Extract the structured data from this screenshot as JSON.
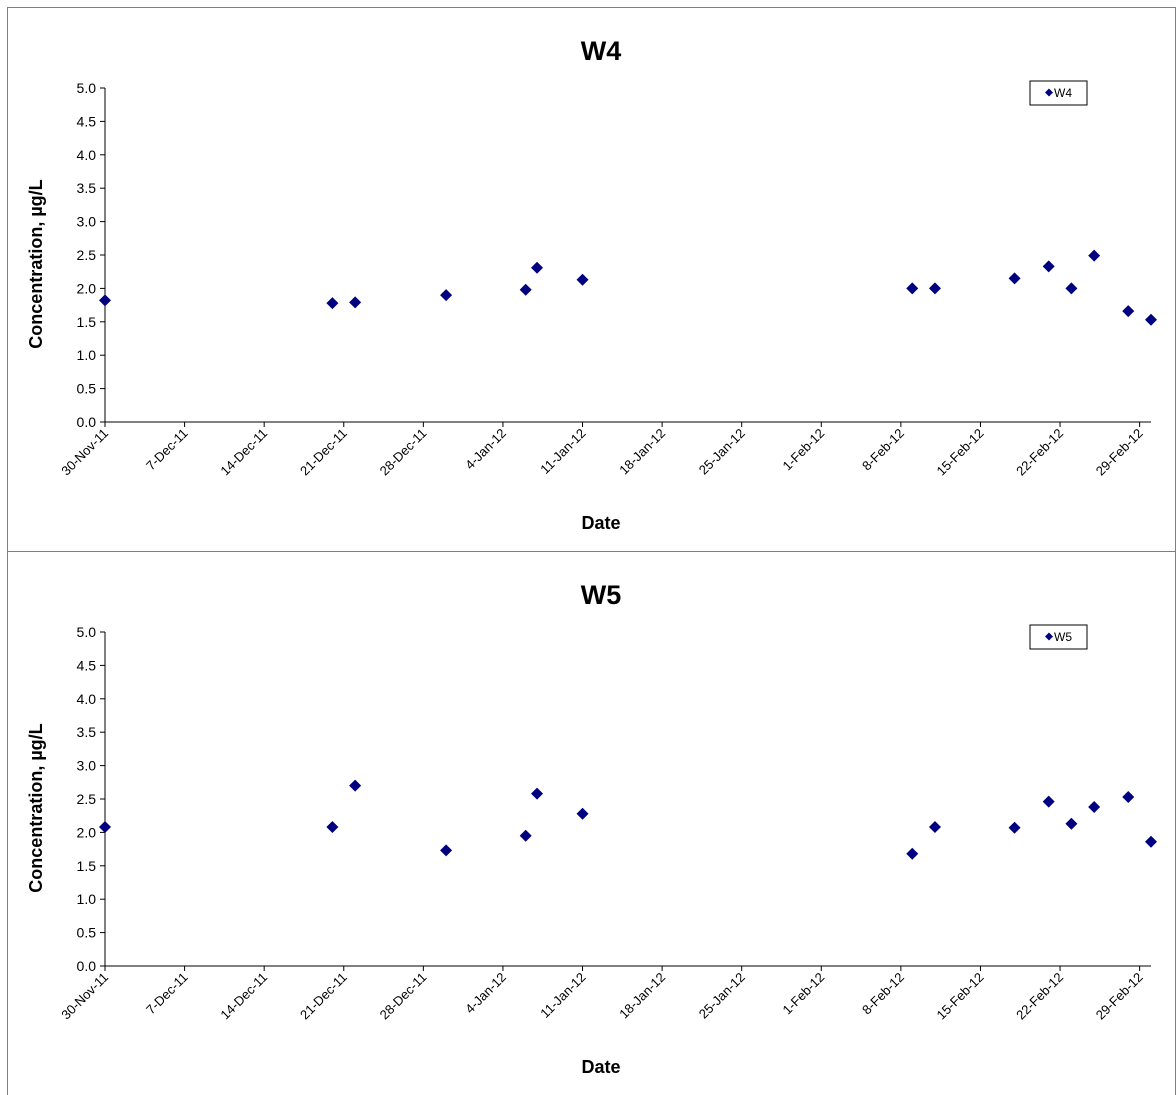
{
  "chart_data": [
    {
      "type": "scatter",
      "title": "W4",
      "xlabel": "Date",
      "ylabel": "Concentration, µg/L",
      "ylim": [
        0,
        5
      ],
      "yticks": [
        "0.0",
        "0.5",
        "1.0",
        "1.5",
        "2.0",
        "2.5",
        "3.0",
        "3.5",
        "4.0",
        "4.5",
        "5.0"
      ],
      "xlim": [
        "2011-11-30",
        "2012-03-01"
      ],
      "xticks": [
        "30-Nov-11",
        "7-Dec-11",
        "14-Dec-11",
        "21-Dec-11",
        "28-Dec-11",
        "4-Jan-12",
        "11-Jan-12",
        "18-Jan-12",
        "25-Jan-12",
        "1-Feb-12",
        "8-Feb-12",
        "15-Feb-12",
        "22-Feb-12",
        "29-Feb-12"
      ],
      "legend": "top-right",
      "grid": false,
      "marker_color": "#000080",
      "series": [
        {
          "name": "W4",
          "x": [
            "2011-11-30",
            "2011-12-20",
            "2011-12-22",
            "2011-12-30",
            "2012-01-06",
            "2012-01-07",
            "2012-01-11",
            "2012-02-09",
            "2012-02-11",
            "2012-02-18",
            "2012-02-21",
            "2012-02-23",
            "2012-02-25",
            "2012-02-28",
            "2012-03-01"
          ],
          "y": [
            1.82,
            1.78,
            1.79,
            1.9,
            1.98,
            2.31,
            2.13,
            2.0,
            2.0,
            2.15,
            2.33,
            2.0,
            2.49,
            1.66,
            1.53
          ]
        }
      ]
    },
    {
      "type": "scatter",
      "title": "W5",
      "xlabel": "Date",
      "ylabel": "Concentration, µg/L",
      "ylim": [
        0,
        5
      ],
      "yticks": [
        "0.0",
        "0.5",
        "1.0",
        "1.5",
        "2.0",
        "2.5",
        "3.0",
        "3.5",
        "4.0",
        "4.5",
        "5.0"
      ],
      "xlim": [
        "2011-11-30",
        "2012-03-01"
      ],
      "xticks": [
        "30-Nov-11",
        "7-Dec-11",
        "14-Dec-11",
        "21-Dec-11",
        "28-Dec-11",
        "4-Jan-12",
        "11-Jan-12",
        "18-Jan-12",
        "25-Jan-12",
        "1-Feb-12",
        "8-Feb-12",
        "15-Feb-12",
        "22-Feb-12",
        "29-Feb-12"
      ],
      "legend": "top-right",
      "grid": false,
      "marker_color": "#000080",
      "series": [
        {
          "name": "W5",
          "x": [
            "2011-11-30",
            "2011-12-20",
            "2011-12-22",
            "2011-12-30",
            "2012-01-06",
            "2012-01-07",
            "2012-01-11",
            "2012-02-09",
            "2012-02-11",
            "2012-02-18",
            "2012-02-21",
            "2012-02-23",
            "2012-02-25",
            "2012-02-28",
            "2012-03-01"
          ],
          "y": [
            2.08,
            2.08,
            2.7,
            1.73,
            1.95,
            2.58,
            2.28,
            1.68,
            2.08,
            2.07,
            2.46,
            2.13,
            2.38,
            2.53,
            1.86
          ]
        }
      ]
    }
  ]
}
